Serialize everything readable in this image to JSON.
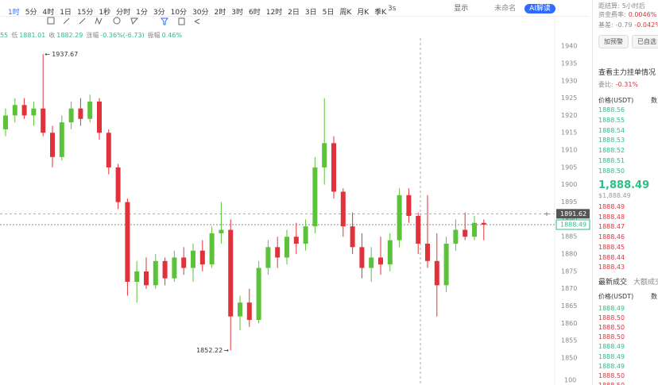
{
  "toolbar": {
    "intervals": [
      "1时",
      "5分",
      "4时",
      "1日",
      "15分",
      "1秒",
      "分时",
      "1分",
      "3分",
      "10分",
      "30分",
      "2时",
      "3时",
      "6时",
      "12时",
      "2日",
      "3日",
      "5日",
      "周K",
      "月K",
      "季K"
    ],
    "active": 0,
    "refresh": "3s",
    "display": "显示",
    "layout_name": "未命名",
    "ai": "AI解读"
  },
  "info": {
    "lead": "55",
    "items": [
      {
        "label": "低",
        "value": "1881.01"
      },
      {
        "label": "收",
        "value": "1882.29"
      },
      {
        "label": "涨幅",
        "value": "-0.36%(-6.73)"
      },
      {
        "label": "振幅",
        "value": "0.46%"
      }
    ]
  },
  "chart": {
    "type": "candlestick",
    "ylim": [
      1849,
      1943
    ],
    "yticks": [
      1940,
      1935,
      1930,
      1925,
      1920,
      1915,
      1910,
      1905,
      1900,
      1895,
      1890,
      1885,
      1880,
      1875,
      1870,
      1865,
      1860,
      1855,
      1850
    ],
    "up_color": "#5cc23a",
    "down_color": "#e1323c",
    "candles": [
      [
        1916,
        1922,
        1914,
        1920
      ],
      [
        1920,
        1925,
        1918,
        1923
      ],
      [
        1923,
        1925,
        1919,
        1920
      ],
      [
        1920,
        1924,
        1917,
        1922
      ],
      [
        1922,
        1937.67,
        1914,
        1915
      ],
      [
        1915,
        1917,
        1905,
        1908
      ],
      [
        1908,
        1920,
        1907,
        1918
      ],
      [
        1918,
        1924,
        1916,
        1922
      ],
      [
        1922,
        1925,
        1917,
        1919
      ],
      [
        1919,
        1926,
        1918,
        1924
      ],
      [
        1924,
        1925,
        1913,
        1915
      ],
      [
        1915,
        1916,
        1903,
        1905
      ],
      [
        1905,
        1906,
        1893,
        1895
      ],
      [
        1895,
        1896,
        1868,
        1872
      ],
      [
        1872,
        1878,
        1866,
        1875
      ],
      [
        1875,
        1879,
        1870,
        1871
      ],
      [
        1871,
        1880,
        1870,
        1878
      ],
      [
        1878,
        1879,
        1871,
        1873
      ],
      [
        1873,
        1881,
        1872,
        1879
      ],
      [
        1879,
        1882,
        1874,
        1876
      ],
      [
        1876,
        1883,
        1872,
        1881
      ],
      [
        1881,
        1884,
        1875,
        1877
      ],
      [
        1877,
        1888,
        1876,
        1886
      ],
      [
        1886,
        1895,
        1883,
        1887
      ],
      [
        1887,
        1890,
        1852.22,
        1862
      ],
      [
        1862,
        1868,
        1858,
        1866
      ],
      [
        1866,
        1870,
        1859,
        1861
      ],
      [
        1861,
        1878,
        1860,
        1876
      ],
      [
        1876,
        1884,
        1874,
        1882
      ],
      [
        1882,
        1885,
        1876,
        1879
      ],
      [
        1879,
        1887,
        1877,
        1885
      ],
      [
        1885,
        1889,
        1880,
        1883
      ],
      [
        1883,
        1890,
        1881,
        1888
      ],
      [
        1888,
        1908,
        1886,
        1905
      ],
      [
        1905,
        1925,
        1900,
        1912
      ],
      [
        1912,
        1914,
        1896,
        1898
      ],
      [
        1898,
        1899,
        1885,
        1888
      ],
      [
        1888,
        1892,
        1880,
        1882
      ],
      [
        1882,
        1886,
        1873,
        1876
      ],
      [
        1876,
        1882,
        1872,
        1879
      ],
      [
        1879,
        1885,
        1874,
        1877
      ],
      [
        1877,
        1886,
        1875,
        1884
      ],
      [
        1884,
        1899,
        1882,
        1897
      ],
      [
        1897,
        1899,
        1889,
        1891
      ],
      [
        1891,
        1892,
        1880,
        1883
      ],
      [
        1883,
        1897,
        1876,
        1878
      ],
      [
        1878,
        1886,
        1862,
        1871
      ],
      [
        1871,
        1885,
        1869,
        1883
      ],
      [
        1883,
        1890,
        1881,
        1887
      ],
      [
        1887,
        1892,
        1884,
        1885
      ],
      [
        1885,
        1891,
        1884,
        1889
      ],
      [
        1889,
        1890,
        1884,
        1888.49
      ]
    ],
    "crosshair_price": 1891.62,
    "last_price": 1888.49,
    "volume_tick": "100"
  },
  "right_panel": {
    "settle": {
      "label": "距结算:",
      "value": "5小时后"
    },
    "funding": {
      "label": "资金费率:",
      "value": "0.0046%"
    },
    "basis": {
      "label": "基差:",
      "value": "-0.79",
      "pct": "-0.042%"
    },
    "buttons": [
      "加预警",
      "已自选"
    ],
    "depth_link": "查看主力挂单情况",
    "ratio": {
      "label": "委比:",
      "value": "-0.31%"
    },
    "book_header": [
      "价格(USDT)",
      "数"
    ],
    "asks": [
      "1888.56",
      "1888.55",
      "1888.54",
      "1888.53",
      "1888.52",
      "1888.51",
      "1888.50"
    ],
    "last": "1,888.49",
    "last_usd": "$1,888.49",
    "bids": [
      "1888.49",
      "1888.48",
      "1888.47",
      "1888.46",
      "1888.45",
      "1888.44",
      "1888.43"
    ],
    "tabs": [
      "最新成交",
      "大额成交"
    ],
    "trade_header": [
      "价格(USDT)",
      "数"
    ],
    "trades": [
      {
        "price": "1888.49",
        "color": "#2ebd85"
      },
      {
        "price": "1888.50",
        "color": "#e1323c"
      },
      {
        "price": "1888.50",
        "color": "#e1323c"
      },
      {
        "price": "1888.50",
        "color": "#e1323c"
      },
      {
        "price": "1888.49",
        "color": "#2ebd85"
      },
      {
        "price": "1888.49",
        "color": "#2ebd85"
      },
      {
        "price": "1888.49",
        "color": "#2ebd85"
      },
      {
        "price": "1888.50",
        "color": "#e1323c"
      },
      {
        "price": "1888.50",
        "color": "#e1323c"
      }
    ]
  }
}
